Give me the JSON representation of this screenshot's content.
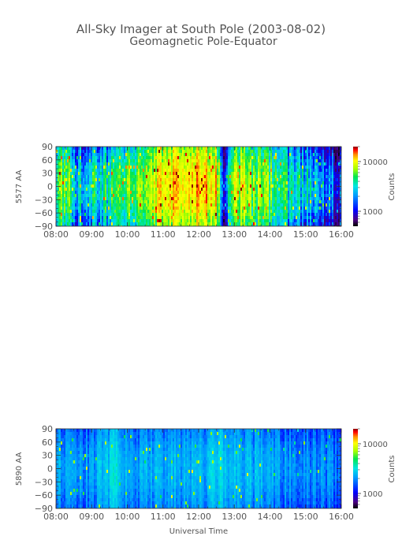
{
  "figure": {
    "title": "All-Sky Imager at South Pole (2003-08-02)",
    "subtitle": "Geomagnetic Pole-Equator",
    "xlabel": "Universal Time"
  },
  "chart_data": [
    {
      "type": "heatmap",
      "ylabel": "5577 AA",
      "x_tick_labels": [
        "08:00",
        "09:00",
        "10:00",
        "11:00",
        "12:00",
        "13:00",
        "14:00",
        "15:00",
        "16:00"
      ],
      "x_range": [
        "08:00",
        "16:00"
      ],
      "y_tick_labels": [
        "90",
        "60",
        "30",
        "0",
        "−30",
        "−60",
        "−90"
      ],
      "y_range": [
        -90,
        90
      ],
      "colorbar": {
        "label": "Counts",
        "scale": "log",
        "range": [
          500,
          20000
        ],
        "tick_labels": [
          "10000",
          "1000"
        ],
        "tick_values": [
          10000,
          1000
        ],
        "colormap": [
          "#000000",
          "#4b0082",
          "#0000ff",
          "#0096ff",
          "#00e5e5",
          "#00e650",
          "#a8ff00",
          "#ffff00",
          "#ff8c00",
          "#ff0000",
          "#8b0000"
        ]
      },
      "time_profile_counts": [
        {
          "time": "08:00",
          "counts": 2200
        },
        {
          "time": "08:15",
          "counts": 3500
        },
        {
          "time": "08:30",
          "counts": 1400
        },
        {
          "time": "09:00",
          "counts": 1700
        },
        {
          "time": "09:30",
          "counts": 2000
        },
        {
          "time": "10:00",
          "counts": 2600
        },
        {
          "time": "10:30",
          "counts": 2900
        },
        {
          "time": "11:00",
          "counts": 5000
        },
        {
          "time": "11:30",
          "counts": 6500
        },
        {
          "time": "12:00",
          "counts": 6000
        },
        {
          "time": "12:30",
          "counts": 5500
        },
        {
          "time": "12:45",
          "counts": 700
        },
        {
          "time": "13:00",
          "counts": 4500
        },
        {
          "time": "13:30",
          "counts": 3000
        },
        {
          "time": "14:00",
          "counts": 2600
        },
        {
          "time": "14:30",
          "counts": 1800
        },
        {
          "time": "15:00",
          "counts": 1500
        },
        {
          "time": "15:30",
          "counts": 1200
        },
        {
          "time": "16:00",
          "counts": 900
        }
      ]
    },
    {
      "type": "heatmap",
      "ylabel": "5890 AA",
      "x_tick_labels": [
        "08:00",
        "09:00",
        "10:00",
        "11:00",
        "12:00",
        "13:00",
        "14:00",
        "15:00",
        "16:00"
      ],
      "x_range": [
        "08:00",
        "16:00"
      ],
      "y_tick_labels": [
        "90",
        "60",
        "30",
        "0",
        "−30",
        "−60",
        "−90"
      ],
      "y_range": [
        -90,
        90
      ],
      "colorbar": {
        "label": "Counts",
        "scale": "log",
        "range": [
          500,
          20000
        ],
        "tick_labels": [
          "10000",
          "1000"
        ],
        "tick_values": [
          10000,
          1000
        ],
        "colormap": [
          "#000000",
          "#4b0082",
          "#0000ff",
          "#0096ff",
          "#00e5e5",
          "#00e650",
          "#a8ff00",
          "#ffff00",
          "#ff8c00",
          "#ff0000",
          "#8b0000"
        ]
      },
      "time_profile_counts": [
        {
          "time": "08:00",
          "counts": 1500
        },
        {
          "time": "09:00",
          "counts": 1400
        },
        {
          "time": "09:40",
          "counts": 1900
        },
        {
          "time": "10:00",
          "counts": 1450
        },
        {
          "time": "11:00",
          "counts": 1550
        },
        {
          "time": "12:00",
          "counts": 1500
        },
        {
          "time": "12:40",
          "counts": 1800
        },
        {
          "time": "13:00",
          "counts": 1600
        },
        {
          "time": "14:00",
          "counts": 1450
        },
        {
          "time": "15:00",
          "counts": 1350
        },
        {
          "time": "16:00",
          "counts": 1300
        }
      ]
    }
  ]
}
